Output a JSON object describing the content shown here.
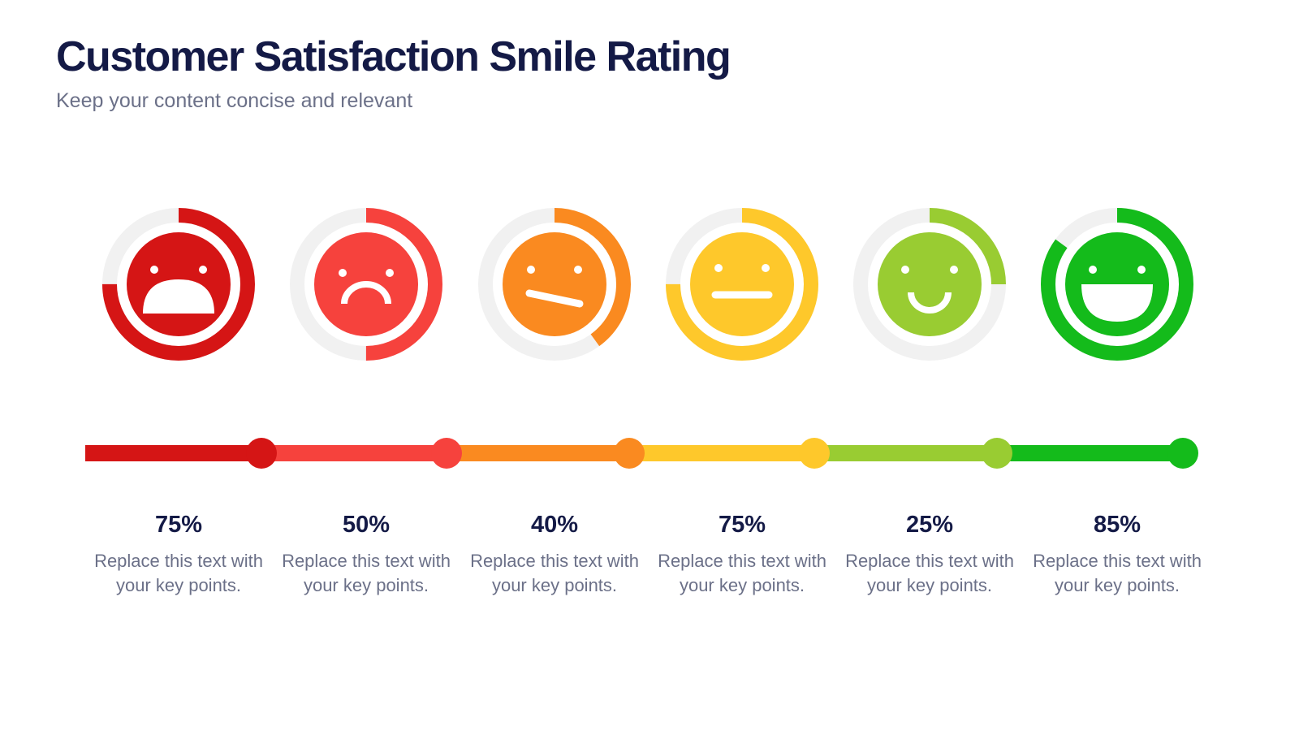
{
  "header": {
    "title": "Customer Satisfaction Smile Rating",
    "subtitle": "Keep your content concise and relevant"
  },
  "colors": {
    "track": "#f1f1f1",
    "text_dark": "#141a46",
    "text_muted": "#6b7088"
  },
  "ratings": [
    {
      "face": "very-unhappy-face-icon",
      "percent": 75,
      "percent_label": "75%",
      "color": "#d51515",
      "description": "Replace this text with your key points."
    },
    {
      "face": "sad-face-icon",
      "percent": 50,
      "percent_label": "50%",
      "color": "#f6423d",
      "description": "Replace this text with your key points."
    },
    {
      "face": "skeptical-face-icon",
      "percent": 40,
      "percent_label": "40%",
      "color": "#fa8a20",
      "description": "Replace this text with your key points."
    },
    {
      "face": "neutral-face-icon",
      "percent": 75,
      "percent_label": "75%",
      "color": "#fec82b",
      "description": "Replace this text with your key points."
    },
    {
      "face": "smiling-face-icon",
      "percent": 25,
      "percent_label": "25%",
      "color": "#99cc32",
      "description": "Replace this text with your key points."
    },
    {
      "face": "very-happy-face-icon",
      "percent": 85,
      "percent_label": "85%",
      "color": "#14bb1b",
      "description": "Replace this text with your key points."
    }
  ]
}
